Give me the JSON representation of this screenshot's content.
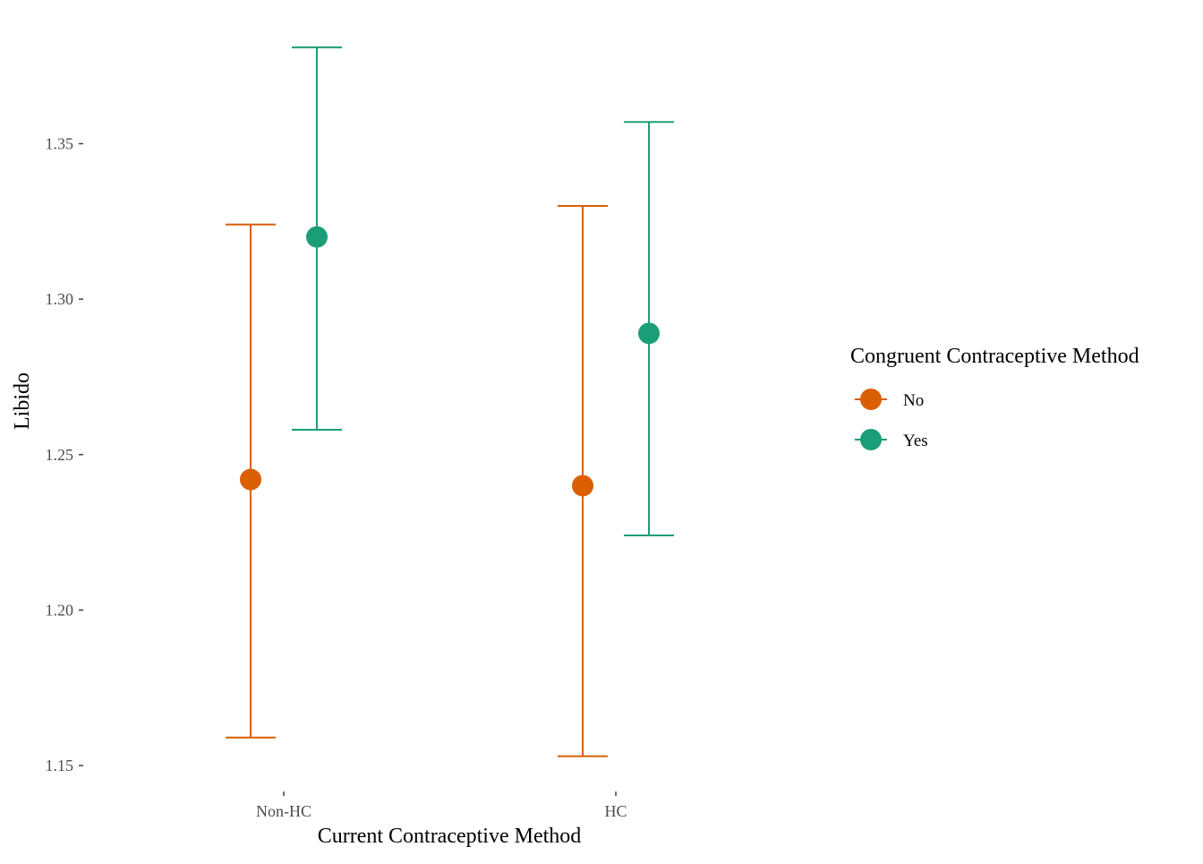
{
  "chart_data": {
    "type": "scatter",
    "subtype": "point-with-errorbars",
    "title": "",
    "xlabel": "Current Contraceptive Method",
    "ylabel": "Libido",
    "categories": [
      "Non-HC",
      "HC"
    ],
    "ylim": [
      1.14,
      1.385
    ],
    "y_ticks": [
      1.15,
      1.2,
      1.25,
      1.3,
      1.35
    ],
    "y_tick_labels": [
      "1.15",
      "1.20",
      "1.25",
      "1.30",
      "1.35"
    ],
    "grid": false,
    "legend": {
      "title": "Congruent Contraceptive Method",
      "position": "right"
    },
    "series": [
      {
        "name": "No",
        "color": "#d95f02",
        "values": [
          1.242,
          1.24
        ],
        "lower": [
          1.159,
          1.153
        ],
        "upper": [
          1.324,
          1.33
        ]
      },
      {
        "name": "Yes",
        "color": "#1b9e77",
        "values": [
          1.32,
          1.289
        ],
        "lower": [
          1.258,
          1.224
        ],
        "upper": [
          1.381,
          1.357
        ]
      }
    ]
  }
}
